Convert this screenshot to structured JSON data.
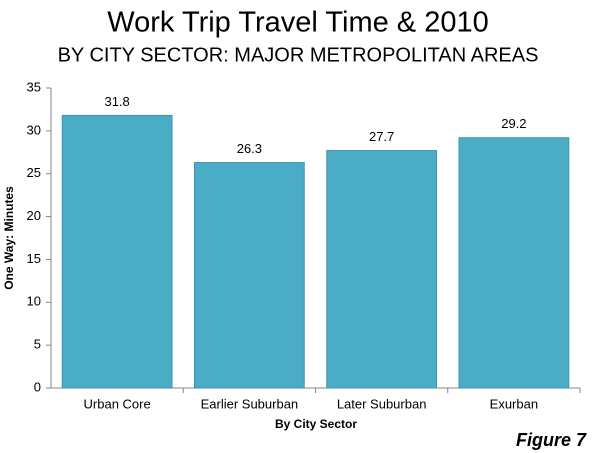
{
  "chart_data": {
    "type": "bar",
    "title": "Work Trip Travel Time & 2010",
    "subtitle": "BY CITY SECTOR: MAJOR METROPOLITAN AREAS",
    "x_label": "By City Sector",
    "y_label": "One Way: Minutes",
    "annotation": "Figure 7",
    "categories": [
      "Urban Core",
      "Earlier Suburban",
      "Later Suburban",
      "Exurban"
    ],
    "values": [
      31.8,
      26.3,
      27.7,
      29.2
    ],
    "color": "#4bacc6",
    "ylim": [
      0,
      35
    ],
    "yticks": [
      0,
      5,
      10,
      15,
      20,
      25,
      30,
      35
    ],
    "grid": false,
    "data_labels": true
  }
}
